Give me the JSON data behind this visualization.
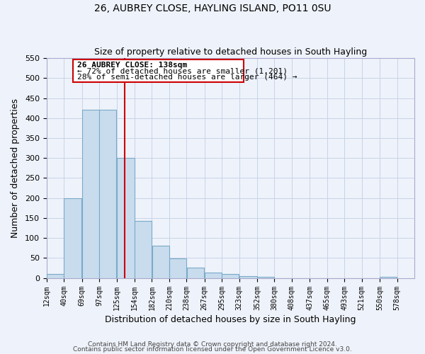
{
  "title": "26, AUBREY CLOSE, HAYLING ISLAND, PO11 0SU",
  "subtitle": "Size of property relative to detached houses in South Hayling",
  "xlabel": "Distribution of detached houses by size in South Hayling",
  "ylabel": "Number of detached properties",
  "bar_left_edges": [
    12,
    40,
    69,
    97,
    125,
    154,
    182,
    210,
    238,
    267,
    295,
    323,
    352,
    380,
    408,
    437,
    465,
    493,
    521,
    550
  ],
  "bar_widths": [
    28,
    29,
    28,
    28,
    29,
    28,
    28,
    28,
    29,
    28,
    28,
    29,
    28,
    28,
    29,
    28,
    28,
    28,
    29,
    28
  ],
  "bar_heights": [
    10,
    200,
    420,
    420,
    300,
    143,
    80,
    48,
    25,
    13,
    10,
    5,
    3,
    0,
    0,
    0,
    0,
    0,
    0,
    3
  ],
  "bar_color": "#c8dcee",
  "bar_edge_color": "#7aaac8",
  "tick_labels": [
    "12sqm",
    "40sqm",
    "69sqm",
    "97sqm",
    "125sqm",
    "154sqm",
    "182sqm",
    "210sqm",
    "238sqm",
    "267sqm",
    "295sqm",
    "323sqm",
    "352sqm",
    "380sqm",
    "408sqm",
    "437sqm",
    "465sqm",
    "493sqm",
    "521sqm",
    "550sqm",
    "578sqm"
  ],
  "property_line_x": 138,
  "property_line_color": "#cc0000",
  "ylim": [
    0,
    550
  ],
  "yticks": [
    0,
    50,
    100,
    150,
    200,
    250,
    300,
    350,
    400,
    450,
    500,
    550
  ],
  "annotation_title": "26 AUBREY CLOSE: 138sqm",
  "annotation_line1": "← 72% of detached houses are smaller (1,201)",
  "annotation_line2": "28% of semi-detached houses are larger (464) →",
  "annotation_box_color": "#cc0000",
  "grid_color": "#c8d4e8",
  "background_color": "#eef2fa",
  "footer_line1": "Contains HM Land Registry data © Crown copyright and database right 2024.",
  "footer_line2": "Contains public sector information licensed under the Open Government Licence v3.0."
}
